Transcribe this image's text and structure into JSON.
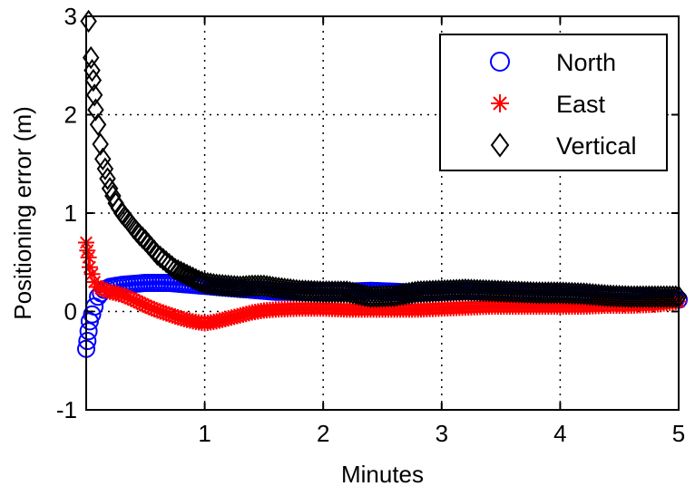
{
  "chart_data": {
    "type": "scatter",
    "title": "",
    "xlabel": "Minutes",
    "ylabel": "Positioning error (m)",
    "xlim": [
      0,
      5
    ],
    "ylim": [
      -1,
      3
    ],
    "xticks": [
      1,
      2,
      3,
      4,
      5
    ],
    "yticks": [
      -1,
      0,
      1,
      2,
      3
    ],
    "grid": true,
    "legend_position": "top-right",
    "series": [
      {
        "name": "North",
        "marker": "circle",
        "color": "#0000ff",
        "x": [
          0.0,
          0.01,
          0.02,
          0.03,
          0.05,
          0.07,
          0.1,
          0.15,
          0.2,
          0.3,
          0.4,
          0.5,
          0.6,
          0.7,
          0.8,
          0.9,
          1.0,
          1.1,
          1.2,
          1.3,
          1.4,
          1.5,
          1.6,
          1.8,
          2.0,
          2.2,
          2.4,
          2.6,
          2.8,
          3.0,
          3.2,
          3.4,
          3.6,
          3.8,
          4.0,
          4.2,
          4.4,
          4.6,
          4.8,
          5.0
        ],
        "y": [
          -0.38,
          -0.3,
          -0.2,
          -0.1,
          -0.03,
          0.05,
          0.15,
          0.22,
          0.25,
          0.27,
          0.28,
          0.29,
          0.29,
          0.29,
          0.28,
          0.27,
          0.26,
          0.25,
          0.24,
          0.23,
          0.22,
          0.21,
          0.2,
          0.2,
          0.2,
          0.2,
          0.21,
          0.2,
          0.19,
          0.2,
          0.21,
          0.2,
          0.19,
          0.19,
          0.18,
          0.17,
          0.16,
          0.15,
          0.14,
          0.12
        ]
      },
      {
        "name": "East",
        "marker": "asterisk",
        "color": "#ff0000",
        "x": [
          0.0,
          0.01,
          0.02,
          0.03,
          0.05,
          0.07,
          0.1,
          0.15,
          0.2,
          0.3,
          0.4,
          0.5,
          0.6,
          0.7,
          0.8,
          0.9,
          1.0,
          1.1,
          1.2,
          1.3,
          1.4,
          1.5,
          1.6,
          1.8,
          2.0,
          2.2,
          2.4,
          2.6,
          2.8,
          3.0,
          3.2,
          3.4,
          3.6,
          3.8,
          4.0,
          4.2,
          4.4,
          4.6,
          4.8,
          5.0
        ],
        "y": [
          0.7,
          0.62,
          0.55,
          0.45,
          0.38,
          0.3,
          0.25,
          0.22,
          0.2,
          0.17,
          0.12,
          0.06,
          0.01,
          -0.03,
          -0.07,
          -0.1,
          -0.12,
          -0.1,
          -0.07,
          -0.04,
          -0.01,
          0.01,
          0.02,
          0.03,
          0.03,
          0.02,
          0.02,
          0.02,
          0.02,
          0.03,
          0.04,
          0.05,
          0.05,
          0.05,
          0.05,
          0.05,
          0.06,
          0.06,
          0.07,
          0.1
        ]
      },
      {
        "name": "Vertical",
        "marker": "diamond",
        "color": "#000000",
        "x": [
          0.02,
          0.04,
          0.05,
          0.06,
          0.07,
          0.08,
          0.1,
          0.12,
          0.14,
          0.16,
          0.18,
          0.2,
          0.25,
          0.3,
          0.35,
          0.4,
          0.45,
          0.5,
          0.55,
          0.6,
          0.65,
          0.7,
          0.75,
          0.8,
          0.85,
          0.9,
          0.95,
          1.0,
          1.05,
          1.1,
          1.2,
          1.3,
          1.4,
          1.5,
          1.6,
          1.8,
          2.0,
          2.2,
          2.4,
          2.6,
          2.8,
          3.0,
          3.2,
          3.4,
          3.6,
          3.8,
          4.0,
          4.2,
          4.4,
          4.6,
          4.8,
          5.0
        ],
        "y": [
          2.95,
          2.58,
          2.45,
          2.35,
          2.2,
          2.05,
          1.9,
          1.7,
          1.55,
          1.45,
          1.35,
          1.25,
          1.1,
          1.0,
          0.93,
          0.85,
          0.78,
          0.72,
          0.65,
          0.58,
          0.53,
          0.48,
          0.43,
          0.4,
          0.37,
          0.34,
          0.31,
          0.29,
          0.28,
          0.27,
          0.26,
          0.25,
          0.26,
          0.26,
          0.24,
          0.21,
          0.2,
          0.2,
          0.15,
          0.16,
          0.2,
          0.21,
          0.22,
          0.21,
          0.2,
          0.19,
          0.19,
          0.18,
          0.16,
          0.15,
          0.15,
          0.15
        ]
      }
    ]
  }
}
